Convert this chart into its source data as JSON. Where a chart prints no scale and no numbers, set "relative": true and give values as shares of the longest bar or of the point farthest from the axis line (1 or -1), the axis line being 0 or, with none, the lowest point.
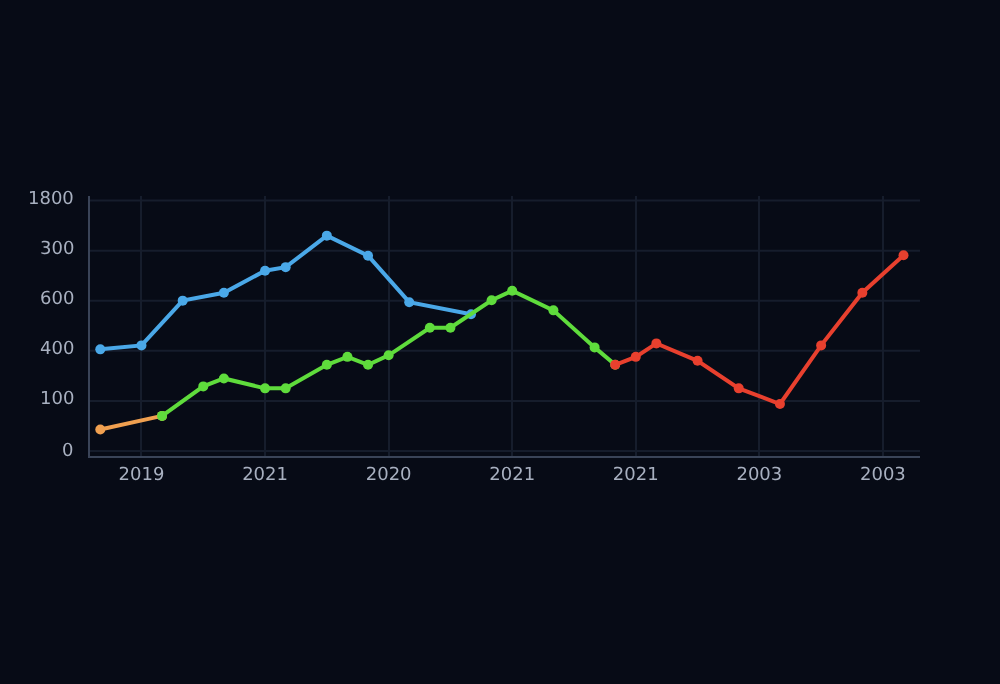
{
  "chart_data": {
    "type": "line",
    "marker": "circle",
    "line_style": "solid",
    "grid": true,
    "relative": true,
    "annotations": [
      "1800",
      "300",
      "600",
      "400",
      "100",
      "0"
    ],
    "categories": [
      null,
      null,
      "2019",
      null,
      null,
      null,
      null,
      null,
      "2021",
      null,
      null,
      null,
      null,
      null,
      "2020",
      null,
      null,
      null,
      null,
      null,
      "2021",
      null,
      null,
      null,
      null,
      null,
      "2021",
      null,
      null,
      null,
      null,
      null,
      "2003",
      null,
      null,
      null,
      null,
      null,
      "2003",
      null
    ],
    "series": [
      {
        "color": "#4aa8e8",
        "values": [
          0.484,
          null,
          0.502,
          null,
          0.705,
          null,
          0.741,
          null,
          0.841,
          0.857,
          null,
          1,
          null,
          0.909,
          null,
          0.698,
          null,
          null,
          0.643,
          null,
          null,
          null,
          null,
          null,
          null,
          null,
          null,
          null,
          null,
          null,
          null,
          null,
          null,
          null,
          null,
          null,
          null,
          null,
          null,
          null
        ]
      },
      {
        "color": "#f0a050",
        "values": [
          0.12,
          null,
          null,
          0.182,
          null,
          null,
          null,
          null,
          null,
          null,
          null,
          null,
          null,
          null,
          null,
          null,
          null,
          null,
          null,
          null,
          null,
          null,
          null,
          null,
          null,
          null,
          null,
          null,
          null,
          null,
          null,
          null,
          null,
          null,
          null,
          null,
          null,
          null,
          null,
          null
        ]
      },
      {
        "color": "#5fdc3c",
        "values": [
          null,
          null,
          null,
          0.182,
          null,
          0.316,
          0.352,
          null,
          0.307,
          0.307,
          null,
          0.414,
          0.45,
          0.414,
          0.457,
          null,
          0.582,
          0.582,
          null,
          0.707,
          0.75,
          null,
          0.661,
          null,
          0.493,
          0.414,
          null,
          null,
          null,
          null,
          null,
          null,
          null,
          null,
          null,
          null,
          null,
          null,
          null,
          null
        ]
      },
      {
        "color": "#e8402e",
        "values": [
          null,
          null,
          null,
          null,
          null,
          null,
          null,
          null,
          null,
          null,
          null,
          null,
          null,
          null,
          null,
          null,
          null,
          null,
          null,
          null,
          null,
          null,
          null,
          null,
          null,
          0.414,
          0.45,
          0.511,
          null,
          0.432,
          null,
          0.307,
          null,
          0.236,
          null,
          0.502,
          null,
          0.741,
          null,
          0.911
        ]
      }
    ]
  }
}
